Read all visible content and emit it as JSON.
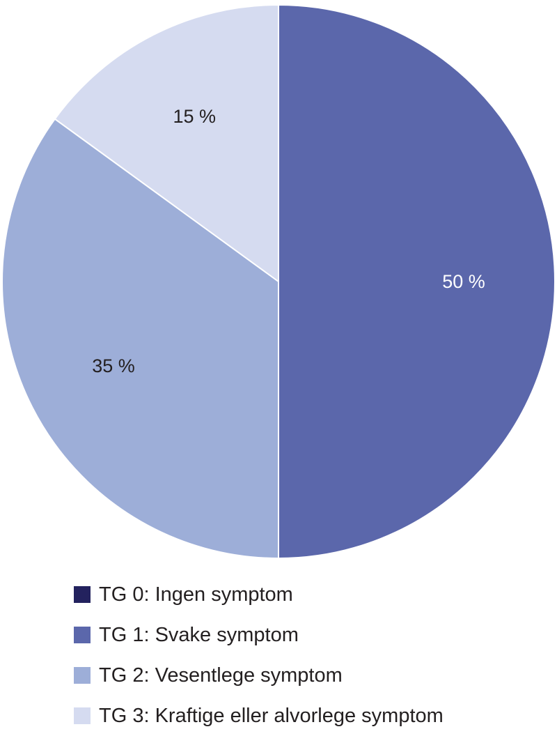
{
  "chart_data": {
    "type": "pie",
    "start_angle_deg": 0,
    "direction": "clockwise",
    "slices": [
      {
        "category": "TG 0: Ingen symptom",
        "value": 0,
        "label": "",
        "color": "#23225e",
        "label_color": "#231f20"
      },
      {
        "category": "TG 1: Svake symptom",
        "value": 50,
        "label": "50 %",
        "color": "#5b67ab",
        "label_color": "#ffffff"
      },
      {
        "category": "TG 2: Vesentlege symptom",
        "value": 35,
        "label": "35 %",
        "color": "#9daed8",
        "label_color": "#231f20"
      },
      {
        "category": "TG 3: Kraftige eller alvorlege symptom",
        "value": 15,
        "label": "15 %",
        "color": "#d5dbf0",
        "label_color": "#231f20"
      }
    ],
    "legend": {
      "placement": "bottom",
      "entries": [
        {
          "label": "TG 0: Ingen symptom",
          "color": "#23225e"
        },
        {
          "label": "TG 1: Svake symptom",
          "color": "#5b67ab"
        },
        {
          "label": "TG 2: Vesentlege symptom",
          "color": "#9daed8"
        },
        {
          "label": "TG 3: Kraftige eller alvorlege symptom",
          "color": "#d5dbf0"
        }
      ]
    }
  }
}
